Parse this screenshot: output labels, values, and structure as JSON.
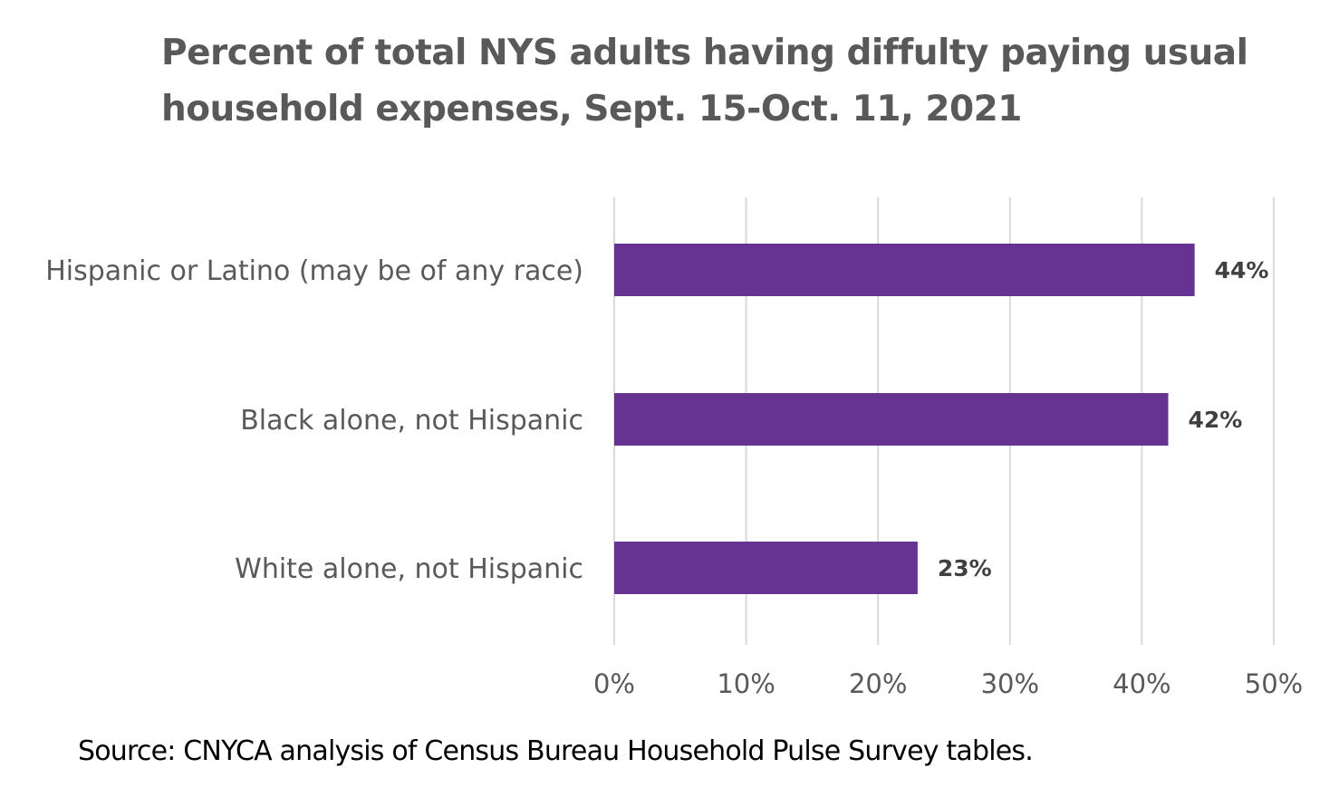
{
  "chart_data": {
    "type": "bar",
    "orientation": "horizontal",
    "title": "Percent of total NYS adults having diffulty paying usual household expenses, Sept. 15-Oct. 11, 2021",
    "categories": [
      "Hispanic or Latino (may be of any race)",
      "Black alone, not Hispanic",
      "White alone, not Hispanic"
    ],
    "values": [
      44,
      42,
      23
    ],
    "data_labels": [
      "44%",
      "42%",
      "23%"
    ],
    "xlabel": "",
    "ylabel": "",
    "xlim": [
      0,
      50
    ],
    "x_ticks": [
      0,
      10,
      20,
      30,
      40,
      50
    ],
    "x_tick_labels": [
      "0%",
      "10%",
      "20%",
      "30%",
      "40%",
      "50%"
    ],
    "grid": true,
    "legend": "none",
    "bar_color": "#673393",
    "gridline_color": "#d9d9d9"
  },
  "source_note": "Source: CNYCA analysis of Census Bureau Household Pulse Survey tables."
}
